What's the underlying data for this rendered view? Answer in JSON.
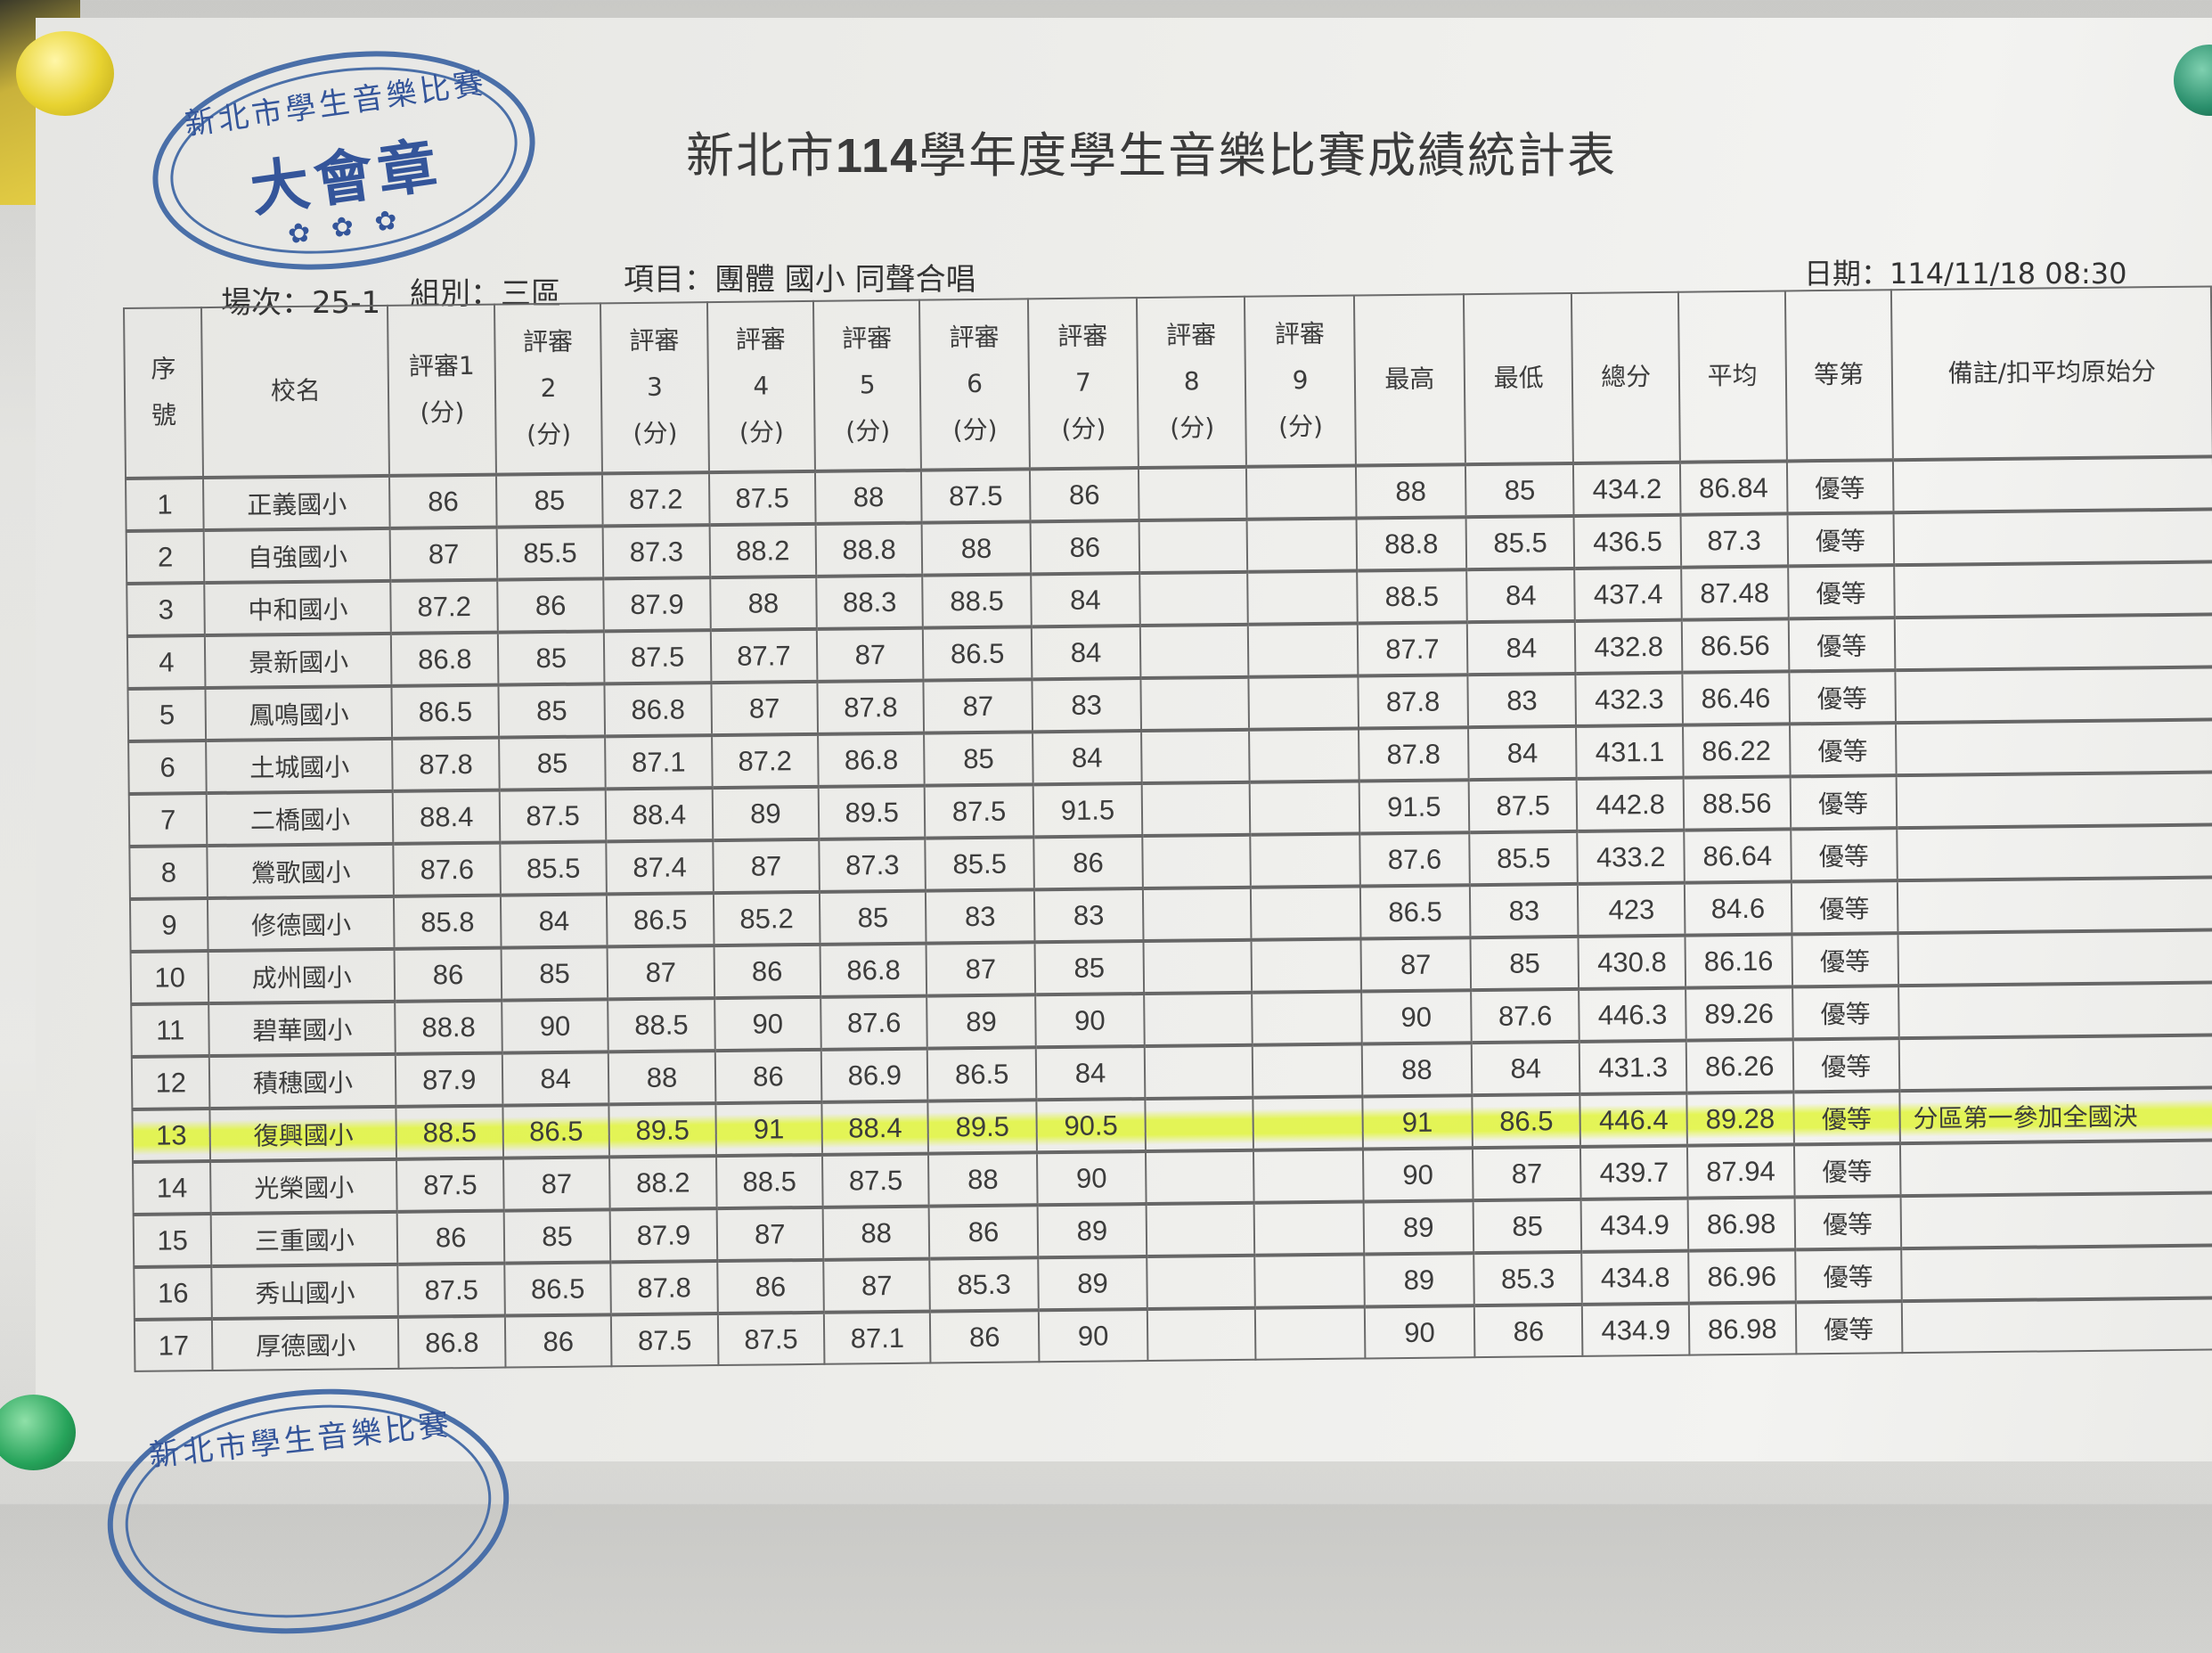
{
  "document": {
    "title_prefix": "新北市",
    "title_year": "114",
    "title_suffix": "學年度學生音樂比賽成績統計表",
    "session": "場次：25-1",
    "group": "組別：三區",
    "event": "項目：團體 國小 同聲合唱",
    "date": "日期：114/11/18 08:30"
  },
  "stamp": {
    "ring_text": "新北市學生音樂比賽",
    "center_text": "大會章"
  },
  "table": {
    "headers": {
      "no": "序號",
      "school": "校名",
      "judges": [
        "評審1 (分)",
        "評審 2 (分)",
        "評審 3 (分)",
        "評審 4 (分)",
        "評審 5 (分)",
        "評審 6 (分)",
        "評審 7 (分)",
        "評審 8 (分)",
        "評審 9 (分)"
      ],
      "max": "最高",
      "min": "最低",
      "total": "總分",
      "avg": "平均",
      "grade": "等第",
      "note": "備註/扣平均原始分"
    },
    "highlight_color": "#e1f53c",
    "rows": [
      {
        "no": "1",
        "school": "正義國小",
        "j": [
          "86",
          "85",
          "87.2",
          "87.5",
          "88",
          "87.5",
          "86",
          "",
          ""
        ],
        "max": "88",
        "min": "85",
        "total": "434.2",
        "avg": "86.84",
        "grade": "優等",
        "note": ""
      },
      {
        "no": "2",
        "school": "自強國小",
        "j": [
          "87",
          "85.5",
          "87.3",
          "88.2",
          "88.8",
          "88",
          "86",
          "",
          ""
        ],
        "max": "88.8",
        "min": "85.5",
        "total": "436.5",
        "avg": "87.3",
        "grade": "優等",
        "note": ""
      },
      {
        "no": "3",
        "school": "中和國小",
        "j": [
          "87.2",
          "86",
          "87.9",
          "88",
          "88.3",
          "88.5",
          "84",
          "",
          ""
        ],
        "max": "88.5",
        "min": "84",
        "total": "437.4",
        "avg": "87.48",
        "grade": "優等",
        "note": ""
      },
      {
        "no": "4",
        "school": "景新國小",
        "j": [
          "86.8",
          "85",
          "87.5",
          "87.7",
          "87",
          "86.5",
          "84",
          "",
          ""
        ],
        "max": "87.7",
        "min": "84",
        "total": "432.8",
        "avg": "86.56",
        "grade": "優等",
        "note": ""
      },
      {
        "no": "5",
        "school": "鳳鳴國小",
        "j": [
          "86.5",
          "85",
          "86.8",
          "87",
          "87.8",
          "87",
          "83",
          "",
          ""
        ],
        "max": "87.8",
        "min": "83",
        "total": "432.3",
        "avg": "86.46",
        "grade": "優等",
        "note": ""
      },
      {
        "no": "6",
        "school": "土城國小",
        "j": [
          "87.8",
          "85",
          "87.1",
          "87.2",
          "86.8",
          "85",
          "84",
          "",
          ""
        ],
        "max": "87.8",
        "min": "84",
        "total": "431.1",
        "avg": "86.22",
        "grade": "優等",
        "note": ""
      },
      {
        "no": "7",
        "school": "二橋國小",
        "j": [
          "88.4",
          "87.5",
          "88.4",
          "89",
          "89.5",
          "87.5",
          "91.5",
          "",
          ""
        ],
        "max": "91.5",
        "min": "87.5",
        "total": "442.8",
        "avg": "88.56",
        "grade": "優等",
        "note": ""
      },
      {
        "no": "8",
        "school": "鶯歌國小",
        "j": [
          "87.6",
          "85.5",
          "87.4",
          "87",
          "87.3",
          "85.5",
          "86",
          "",
          ""
        ],
        "max": "87.6",
        "min": "85.5",
        "total": "433.2",
        "avg": "86.64",
        "grade": "優等",
        "note": ""
      },
      {
        "no": "9",
        "school": "修德國小",
        "j": [
          "85.8",
          "84",
          "86.5",
          "85.2",
          "85",
          "83",
          "83",
          "",
          ""
        ],
        "max": "86.5",
        "min": "83",
        "total": "423",
        "avg": "84.6",
        "grade": "優等",
        "note": ""
      },
      {
        "no": "10",
        "school": "成州國小",
        "j": [
          "86",
          "85",
          "87",
          "86",
          "86.8",
          "87",
          "85",
          "",
          ""
        ],
        "max": "87",
        "min": "85",
        "total": "430.8",
        "avg": "86.16",
        "grade": "優等",
        "note": ""
      },
      {
        "no": "11",
        "school": "碧華國小",
        "j": [
          "88.8",
          "90",
          "88.5",
          "90",
          "87.6",
          "89",
          "90",
          "",
          ""
        ],
        "max": "90",
        "min": "87.6",
        "total": "446.3",
        "avg": "89.26",
        "grade": "優等",
        "note": ""
      },
      {
        "no": "12",
        "school": "積穗國小",
        "j": [
          "87.9",
          "84",
          "88",
          "86",
          "86.9",
          "86.5",
          "84",
          "",
          ""
        ],
        "max": "88",
        "min": "84",
        "total": "431.3",
        "avg": "86.26",
        "grade": "優等",
        "note": ""
      },
      {
        "no": "13",
        "school": "復興國小",
        "j": [
          "88.5",
          "86.5",
          "89.5",
          "91",
          "88.4",
          "89.5",
          "90.5",
          "",
          ""
        ],
        "max": "91",
        "min": "86.5",
        "total": "446.4",
        "avg": "89.28",
        "grade": "優等",
        "note": "分區第一參加全國決",
        "highlighted": true
      },
      {
        "no": "14",
        "school": "光榮國小",
        "j": [
          "87.5",
          "87",
          "88.2",
          "88.5",
          "87.5",
          "88",
          "90",
          "",
          ""
        ],
        "max": "90",
        "min": "87",
        "total": "439.7",
        "avg": "87.94",
        "grade": "優等",
        "note": ""
      },
      {
        "no": "15",
        "school": "三重國小",
        "j": [
          "86",
          "85",
          "87.9",
          "87",
          "88",
          "86",
          "89",
          "",
          ""
        ],
        "max": "89",
        "min": "85",
        "total": "434.9",
        "avg": "86.98",
        "grade": "優等",
        "note": ""
      },
      {
        "no": "16",
        "school": "秀山國小",
        "j": [
          "87.5",
          "86.5",
          "87.8",
          "86",
          "87",
          "85.3",
          "89",
          "",
          ""
        ],
        "max": "89",
        "min": "85.3",
        "total": "434.8",
        "avg": "86.96",
        "grade": "優等",
        "note": ""
      },
      {
        "no": "17",
        "school": "厚德國小",
        "j": [
          "86.8",
          "86",
          "87.5",
          "87.5",
          "87.1",
          "86",
          "90",
          "",
          ""
        ],
        "max": "90",
        "min": "86",
        "total": "434.9",
        "avg": "86.98",
        "grade": "優等",
        "note": ""
      }
    ]
  }
}
